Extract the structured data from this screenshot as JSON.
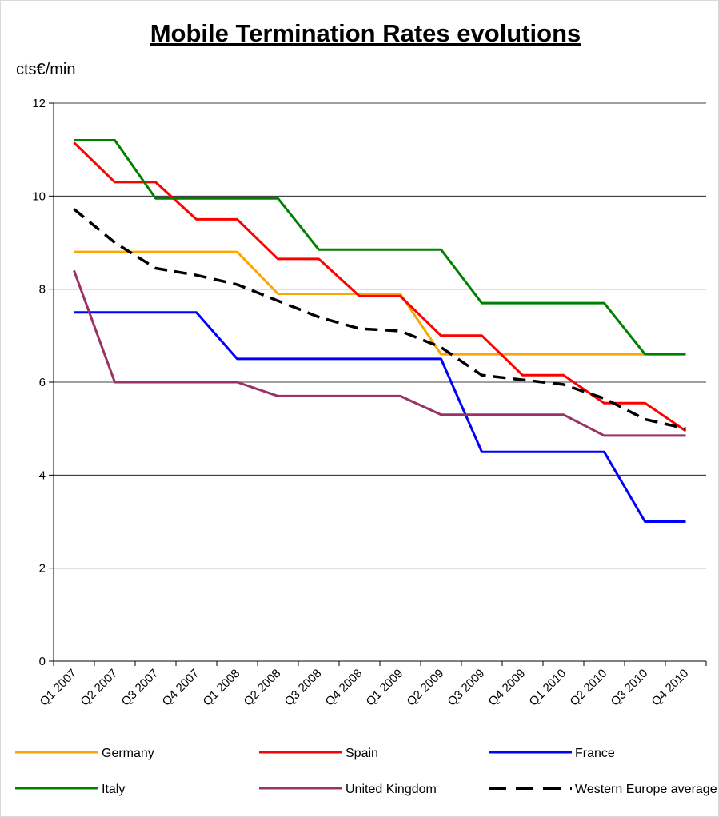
{
  "chart_data": {
    "type": "line",
    "title": "Mobile Termination Rates evolutions",
    "ylabel": "cts€/min",
    "xlabel": "",
    "ylim": [
      0,
      12
    ],
    "yticks": [
      0,
      2,
      4,
      6,
      8,
      10,
      12
    ],
    "grid": true,
    "legend_position": "bottom",
    "categories": [
      "Q1 2007",
      "Q2 2007",
      "Q3 2007",
      "Q4 2007",
      "Q1 2008",
      "Q2 2008",
      "Q3 2008",
      "Q4 2008",
      "Q1 2009",
      "Q2 2009",
      "Q3 2009",
      "Q4 2009",
      "Q1 2010",
      "Q2 2010",
      "Q3 2010",
      "Q4 2010"
    ],
    "series": [
      {
        "name": "Germany",
        "color": "#FFA500",
        "dash": false,
        "values": [
          8.8,
          8.8,
          8.8,
          8.8,
          8.8,
          7.9,
          7.9,
          7.9,
          7.9,
          6.6,
          6.6,
          6.6,
          6.6,
          6.6,
          6.6,
          null
        ]
      },
      {
        "name": "Spain",
        "color": "#FF0000",
        "dash": false,
        "values": [
          11.15,
          10.3,
          10.3,
          9.5,
          9.5,
          8.65,
          8.65,
          7.85,
          7.85,
          7.0,
          7.0,
          6.15,
          6.15,
          5.55,
          5.55,
          4.95
        ]
      },
      {
        "name": "France",
        "color": "#0000FF",
        "dash": false,
        "values": [
          7.5,
          7.5,
          7.5,
          7.5,
          6.5,
          6.5,
          6.5,
          6.5,
          6.5,
          6.5,
          4.5,
          4.5,
          4.5,
          4.5,
          3.0,
          3.0
        ]
      },
      {
        "name": "Italy",
        "color": "#008000",
        "dash": false,
        "values": [
          11.2,
          11.2,
          9.95,
          9.95,
          9.95,
          9.95,
          8.85,
          8.85,
          8.85,
          8.85,
          7.7,
          7.7,
          7.7,
          7.7,
          6.6,
          6.6
        ]
      },
      {
        "name": "United Kingdom",
        "color": "#993366",
        "dash": false,
        "values": [
          8.4,
          6.0,
          6.0,
          6.0,
          6.0,
          5.7,
          5.7,
          5.7,
          5.7,
          5.3,
          5.3,
          5.3,
          5.3,
          4.85,
          4.85,
          4.85
        ]
      },
      {
        "name": "Western Europe average",
        "color": "#000000",
        "dash": true,
        "values": [
          9.72,
          9.0,
          8.45,
          8.3,
          8.1,
          7.75,
          7.4,
          7.15,
          7.1,
          6.75,
          6.15,
          6.05,
          5.95,
          5.65,
          5.2,
          5.0
        ]
      }
    ]
  }
}
